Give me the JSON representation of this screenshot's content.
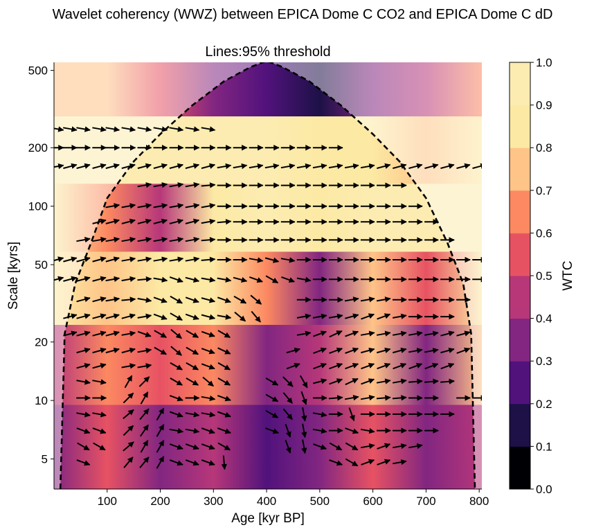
{
  "chart_data": {
    "type": "heatmap",
    "suptitle": "Wavelet coherency (WWZ) between EPICA Dome C CO2 and EPICA Dome C dD",
    "title": "Lines:95% threshold",
    "xlabel": "Age [kyr BP]",
    "ylabel": "Scale [kyrs]",
    "colorbar_label": "WTC",
    "xlim": [
      0,
      805
    ],
    "ylim": [
      3.5,
      550
    ],
    "yscale": "log",
    "x_ticks": [
      100,
      200,
      300,
      400,
      500,
      600,
      700,
      800
    ],
    "x_tick_labels": [
      "100",
      "200",
      "300",
      "400",
      "500",
      "600",
      "700",
      "800"
    ],
    "y_ticks": [
      5,
      10,
      20,
      50,
      100,
      200,
      500
    ],
    "y_tick_labels": [
      "5",
      "10",
      "20",
      "50",
      "100",
      "200",
      "500"
    ],
    "colorbar_ticks": [
      0.0,
      0.1,
      0.2,
      0.3,
      0.4,
      0.5,
      0.6,
      0.7,
      0.8,
      0.9,
      1.0
    ],
    "colorbar_tick_labels": [
      "0.0",
      "0.1",
      "0.2",
      "0.3",
      "0.4",
      "0.5",
      "0.6",
      "0.7",
      "0.8",
      "0.9",
      "1.0"
    ],
    "colormap": [
      "#000004",
      "#1d1147",
      "#51127c",
      "#822681",
      "#b73779",
      "#e75263",
      "#fc8961",
      "#fec488",
      "#fce9a4",
      "#fcecb1"
    ],
    "cone_of_influence": {
      "x": [
        12,
        20,
        40,
        70,
        100,
        150,
        200,
        260,
        320,
        370,
        400,
        430,
        480,
        540,
        600,
        650,
        700,
        740,
        770,
        785,
        792
      ],
      "y": [
        3.5,
        22,
        40,
        65,
        110,
        170,
        235,
        330,
        440,
        520,
        560,
        520,
        440,
        330,
        235,
        170,
        110,
        65,
        40,
        22,
        3.5
      ]
    },
    "coherence_bands": [
      {
        "scale": 420,
        "profile_x": [
          0,
          100,
          200,
          300,
          400,
          500,
          600,
          700,
          805
        ],
        "wtc": [
          0.75,
          0.7,
          0.55,
          0.3,
          0.25,
          0.15,
          0.3,
          0.45,
          0.6
        ]
      },
      {
        "scale": 200,
        "profile_x": [
          0,
          100,
          200,
          300,
          400,
          500,
          600,
          700,
          805
        ],
        "wtc": [
          0.95,
          0.95,
          0.9,
          0.9,
          0.9,
          0.85,
          0.8,
          0.75,
          0.8
        ]
      },
      {
        "scale": 85,
        "profile_x": [
          0,
          100,
          200,
          300,
          400,
          500,
          600,
          700,
          805
        ],
        "wtc": [
          0.85,
          0.6,
          0.45,
          0.85,
          0.9,
          0.85,
          0.9,
          0.92,
          0.95
        ]
      },
      {
        "scale": 40,
        "profile_x": [
          0,
          100,
          200,
          300,
          400,
          500,
          600,
          700,
          805
        ],
        "wtc": [
          0.85,
          0.75,
          0.85,
          0.8,
          0.6,
          0.3,
          0.75,
          0.5,
          0.8
        ]
      },
      {
        "scale": 15,
        "profile_x": [
          0,
          100,
          200,
          300,
          400,
          500,
          600,
          700,
          805
        ],
        "wtc": [
          0.4,
          0.6,
          0.5,
          0.6,
          0.3,
          0.4,
          0.7,
          0.3,
          0.7
        ]
      },
      {
        "scale": 6,
        "profile_x": [
          0,
          100,
          200,
          300,
          400,
          500,
          600,
          700,
          805
        ],
        "wtc": [
          0.3,
          0.5,
          0.3,
          0.4,
          0.2,
          0.3,
          0.5,
          0.3,
          0.4
        ]
      }
    ],
    "phase_arrows": [
      {
        "scale": 250,
        "x": [
          5,
          30,
          55,
          85,
          110,
          140,
          170,
          200,
          230,
          260,
          290
        ],
        "angle_deg": [
          -10,
          -10,
          -10,
          -10,
          -10,
          -10,
          -10,
          -10,
          -10,
          -10,
          -10
        ]
      },
      {
        "scale": 200,
        "x": [
          5,
          30,
          55,
          85,
          110,
          140,
          170,
          200,
          230,
          260,
          290,
          320,
          350,
          380,
          410,
          440,
          470,
          500,
          530
        ],
        "angle_deg": [
          0,
          0,
          0,
          0,
          0,
          0,
          0,
          0,
          0,
          0,
          0,
          0,
          0,
          0,
          0,
          0,
          0,
          0,
          0
        ]
      },
      {
        "scale": 160,
        "x": [
          5,
          30,
          55,
          85,
          110,
          140,
          170,
          200,
          230,
          260,
          290,
          320,
          350,
          380,
          410,
          440,
          470,
          500,
          530,
          560,
          590,
          620,
          650,
          680,
          710,
          740,
          770,
          800
        ],
        "angle_deg": [
          10,
          15,
          15,
          15,
          15,
          15,
          15,
          15,
          15,
          15,
          15,
          10,
          10,
          10,
          10,
          10,
          10,
          10,
          10,
          10,
          10,
          15,
          15,
          15,
          15,
          15,
          15,
          15
        ]
      },
      {
        "scale": 128,
        "x": [
          170,
          200,
          230,
          260,
          290,
          320,
          350,
          380,
          410,
          440,
          470,
          500,
          530,
          560,
          590,
          620,
          650
        ],
        "angle_deg": [
          10,
          10,
          10,
          10,
          5,
          0,
          0,
          0,
          0,
          0,
          0,
          0,
          0,
          0,
          0,
          0,
          0
        ]
      },
      {
        "scale": 100,
        "x": [
          110,
          140,
          170,
          200,
          230,
          260,
          290,
          320,
          350,
          380,
          410,
          440,
          470,
          500,
          530,
          560,
          590,
          620,
          650,
          680
        ],
        "angle_deg": [
          10,
          10,
          10,
          10,
          10,
          10,
          10,
          0,
          0,
          0,
          0,
          0,
          0,
          0,
          0,
          0,
          0,
          0,
          0,
          0
        ]
      },
      {
        "scale": 83,
        "x": [
          85,
          110,
          140,
          170,
          200,
          230,
          260,
          290,
          320,
          350,
          380,
          410,
          440,
          470,
          500,
          530,
          560,
          590,
          620,
          650,
          680,
          710
        ],
        "angle_deg": [
          15,
          15,
          15,
          15,
          15,
          15,
          15,
          10,
          5,
          0,
          0,
          0,
          0,
          0,
          0,
          0,
          0,
          0,
          0,
          0,
          0,
          0
        ]
      },
      {
        "scale": 67,
        "x": [
          55,
          85,
          110,
          140,
          170,
          200,
          230,
          260,
          290,
          320,
          350,
          380,
          410,
          440,
          470,
          500,
          530,
          560,
          590,
          620,
          650,
          680,
          710,
          740
        ],
        "angle_deg": [
          10,
          10,
          10,
          10,
          10,
          10,
          10,
          10,
          5,
          0,
          0,
          0,
          0,
          0,
          0,
          0,
          0,
          0,
          0,
          0,
          0,
          0,
          0,
          0
        ]
      },
      {
        "scale": 53,
        "x": [
          5,
          30,
          55,
          85,
          110,
          140,
          170,
          200,
          230,
          260,
          290,
          320,
          350,
          380,
          410,
          440,
          470,
          500,
          530,
          560,
          590,
          620,
          650,
          680,
          710,
          740,
          770,
          800
        ],
        "angle_deg": [
          15,
          15,
          15,
          15,
          15,
          10,
          10,
          10,
          10,
          10,
          5,
          0,
          0,
          -10,
          -15,
          -10,
          0,
          0,
          0,
          0,
          0,
          0,
          0,
          0,
          0,
          0,
          0,
          0
        ]
      },
      {
        "scale": 42,
        "x": [
          5,
          30,
          55,
          85,
          110,
          140,
          170,
          200,
          230,
          260,
          290,
          320,
          350,
          380,
          410,
          440,
          470,
          500,
          530,
          560,
          590,
          620,
          650,
          680,
          710,
          740,
          770,
          800
        ],
        "angle_deg": [
          15,
          15,
          15,
          15,
          10,
          10,
          5,
          -10,
          -20,
          -15,
          -10,
          -10,
          -15,
          -20,
          -30,
          -20,
          -10,
          0,
          0,
          0,
          0,
          0,
          0,
          0,
          0,
          0,
          0,
          0
        ]
      },
      {
        "scale": 33,
        "x": [
          55,
          85,
          110,
          140,
          170,
          200,
          230,
          260,
          290,
          320,
          350,
          380,
          470,
          500,
          530,
          560,
          590,
          620,
          650,
          680,
          710,
          740,
          770
        ],
        "angle_deg": [
          15,
          15,
          10,
          5,
          -10,
          -20,
          -30,
          -20,
          -15,
          -20,
          -30,
          -40,
          0,
          0,
          0,
          10,
          10,
          10,
          0,
          0,
          0,
          0,
          0
        ]
      },
      {
        "scale": 27,
        "x": [
          30,
          55,
          85,
          110,
          140,
          170,
          200,
          230,
          260,
          290,
          320,
          350,
          380,
          470,
          500,
          530,
          560,
          590,
          620,
          650,
          680,
          710,
          740
        ],
        "angle_deg": [
          15,
          15,
          15,
          15,
          15,
          10,
          -20,
          -30,
          -20,
          -15,
          -10,
          -40,
          -50,
          10,
          10,
          10,
          15,
          20,
          20,
          10,
          0,
          0,
          0
        ]
      },
      {
        "scale": 22,
        "x": [
          30,
          55,
          85,
          110,
          140,
          170,
          200,
          230,
          260,
          290,
          320,
          470,
          500,
          530,
          560,
          590,
          620,
          650,
          680,
          710,
          740,
          770
        ],
        "angle_deg": [
          15,
          15,
          15,
          15,
          10,
          -20,
          -30,
          -40,
          -30,
          -20,
          -30,
          10,
          20,
          25,
          20,
          10,
          10,
          10,
          10,
          10,
          15,
          15
        ]
      },
      {
        "scale": 18,
        "x": [
          55,
          85,
          110,
          140,
          170,
          200,
          230,
          260,
          290,
          320,
          450,
          500,
          530,
          560,
          590,
          620,
          650,
          680,
          710,
          740,
          770
        ],
        "angle_deg": [
          15,
          15,
          15,
          15,
          10,
          -30,
          -40,
          -30,
          -20,
          -25,
          15,
          20,
          20,
          20,
          15,
          15,
          15,
          10,
          10,
          15,
          20
        ]
      },
      {
        "scale": 15,
        "x": [
          55,
          85,
          140,
          170,
          230,
          260,
          290,
          320,
          450,
          500,
          530,
          560,
          590,
          620,
          650,
          680,
          710,
          740
        ],
        "angle_deg": [
          15,
          15,
          10,
          10,
          -30,
          -30,
          -20,
          -30,
          20,
          20,
          20,
          20,
          20,
          20,
          20,
          20,
          20,
          20
        ]
      },
      {
        "scale": 12.5,
        "x": [
          55,
          85,
          140,
          170,
          230,
          260,
          290,
          320,
          410,
          440,
          470,
          500,
          530,
          560,
          590,
          620,
          650,
          680,
          710,
          740
        ],
        "angle_deg": [
          -10,
          -10,
          60,
          45,
          -30,
          -30,
          -40,
          -30,
          -30,
          -45,
          -60,
          15,
          20,
          25,
          20,
          10,
          10,
          5,
          5,
          5
        ]
      },
      {
        "scale": 10.3,
        "x": [
          55,
          85,
          140,
          170,
          230,
          260,
          290,
          320,
          410,
          440,
          470,
          500,
          530,
          560,
          590,
          620,
          650,
          680,
          710,
          770,
          800
        ],
        "angle_deg": [
          0,
          0,
          45,
          60,
          -20,
          0,
          -10,
          -20,
          -30,
          -50,
          -70,
          0,
          5,
          10,
          10,
          5,
          5,
          0,
          0,
          0,
          0
        ]
      },
      {
        "scale": 8.5,
        "x": [
          55,
          85,
          140,
          170,
          200,
          230,
          260,
          290,
          320,
          410,
          440,
          470,
          500,
          530,
          560,
          590,
          620,
          650,
          680,
          710,
          740
        ],
        "angle_deg": [
          -10,
          -10,
          40,
          50,
          60,
          -20,
          -10,
          -10,
          -20,
          -30,
          -50,
          -80,
          -10,
          0,
          -70,
          0,
          0,
          0,
          0,
          0,
          0
        ]
      },
      {
        "scale": 7,
        "x": [
          55,
          85,
          140,
          170,
          200,
          230,
          260,
          290,
          320,
          410,
          440,
          470,
          500,
          530,
          560,
          590,
          620,
          650,
          680,
          710
        ],
        "angle_deg": [
          -20,
          -20,
          45,
          55,
          60,
          -10,
          -10,
          -20,
          -20,
          -20,
          -70,
          -80,
          -10,
          0,
          -20,
          -10,
          0,
          0,
          0,
          0
        ]
      },
      {
        "scale": 5.8,
        "x": [
          55,
          85,
          140,
          170,
          200,
          230,
          260,
          290,
          320,
          440,
          470,
          500,
          530,
          560,
          590,
          620,
          650,
          680
        ],
        "angle_deg": [
          -30,
          -30,
          40,
          60,
          60,
          -20,
          -20,
          -20,
          -30,
          -70,
          -80,
          -20,
          -30,
          -30,
          10,
          20,
          10,
          10
        ]
      },
      {
        "scale": 4.8,
        "x": [
          55,
          140,
          170,
          200,
          230,
          260,
          290,
          320,
          530,
          560,
          590,
          620,
          650
        ],
        "angle_deg": [
          -20,
          50,
          50,
          60,
          -20,
          -20,
          -20,
          -85,
          -20,
          -30,
          20,
          20,
          10
        ]
      }
    ]
  }
}
